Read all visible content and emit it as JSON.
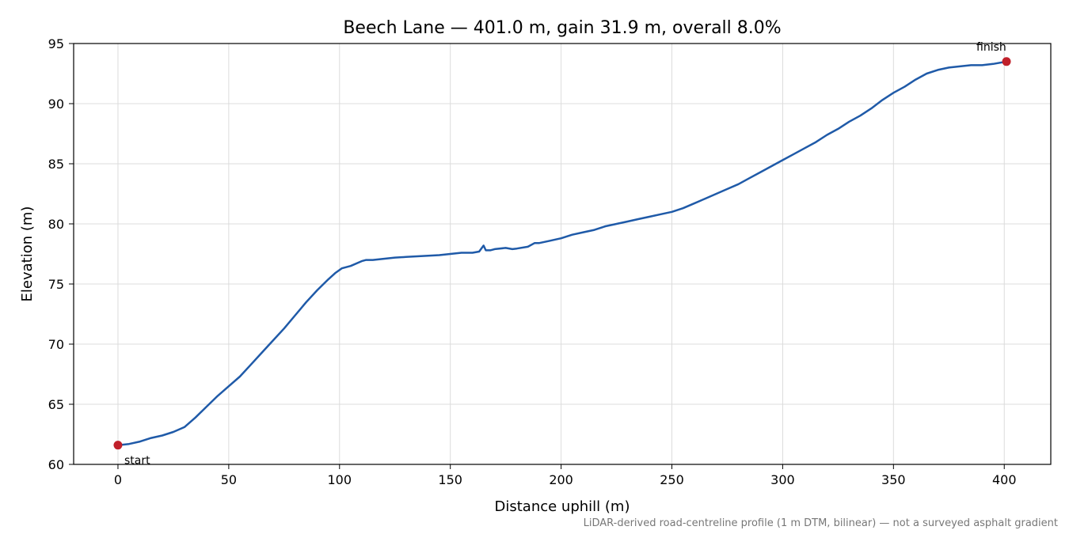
{
  "chart_data": {
    "type": "line",
    "title": "Beech Lane — 401.0 m, gain 31.9 m, overall 8.0%",
    "xlabel": "Distance uphill (m)",
    "ylabel": "Elevation (m)",
    "xlim": [
      -20,
      421
    ],
    "ylim": [
      60,
      95
    ],
    "x_ticks": [
      0,
      50,
      100,
      150,
      200,
      250,
      300,
      350,
      400
    ],
    "y_ticks": [
      60,
      65,
      70,
      75,
      80,
      85,
      90,
      95
    ],
    "grid": true,
    "line_color": "#1f5aa8",
    "marker_color": "#c0202a",
    "series": [
      {
        "x": [
          0,
          5,
          10,
          15,
          20,
          25,
          30,
          35,
          40,
          45,
          50,
          55,
          60,
          65,
          70,
          75,
          80,
          85,
          90,
          95,
          98,
          101,
          105,
          110,
          112,
          115,
          120,
          125,
          130,
          135,
          140,
          145,
          150,
          155,
          160,
          163,
          165,
          166,
          168,
          170,
          175,
          178,
          180,
          185,
          188,
          190,
          195,
          200,
          205,
          210,
          215,
          220,
          225,
          230,
          235,
          240,
          245,
          250,
          255,
          260,
          265,
          270,
          275,
          280,
          285,
          290,
          295,
          300,
          305,
          310,
          315,
          320,
          325,
          330,
          335,
          340,
          345,
          350,
          355,
          360,
          365,
          370,
          375,
          380,
          385,
          390,
          395,
          401
        ],
        "y": [
          61.6,
          61.7,
          61.9,
          62.2,
          62.4,
          62.7,
          63.1,
          63.9,
          64.8,
          65.7,
          66.5,
          67.3,
          68.3,
          69.3,
          70.3,
          71.3,
          72.4,
          73.5,
          74.5,
          75.4,
          75.9,
          76.3,
          76.5,
          76.9,
          77.0,
          77.0,
          77.1,
          77.2,
          77.25,
          77.3,
          77.35,
          77.4,
          77.5,
          77.6,
          77.6,
          77.7,
          78.2,
          77.8,
          77.8,
          77.9,
          78.0,
          77.9,
          77.95,
          78.1,
          78.4,
          78.4,
          78.6,
          78.8,
          79.1,
          79.3,
          79.5,
          79.8,
          80.0,
          80.2,
          80.4,
          80.6,
          80.8,
          81.0,
          81.3,
          81.7,
          82.1,
          82.5,
          82.9,
          83.3,
          83.8,
          84.3,
          84.8,
          85.3,
          85.8,
          86.3,
          86.8,
          87.4,
          87.9,
          88.5,
          89.0,
          89.6,
          90.3,
          90.9,
          91.4,
          92.0,
          92.5,
          92.8,
          93.0,
          93.1,
          93.2,
          93.2,
          93.3,
          93.5
        ]
      }
    ],
    "annotations": [
      {
        "text": "start",
        "x": 0,
        "y": 61.6
      },
      {
        "text": "finish",
        "x": 401,
        "y": 93.5
      }
    ],
    "footnote": "LiDAR-derived road-centreline profile (1 m DTM, bilinear) — not a surveyed asphalt gradient"
  }
}
